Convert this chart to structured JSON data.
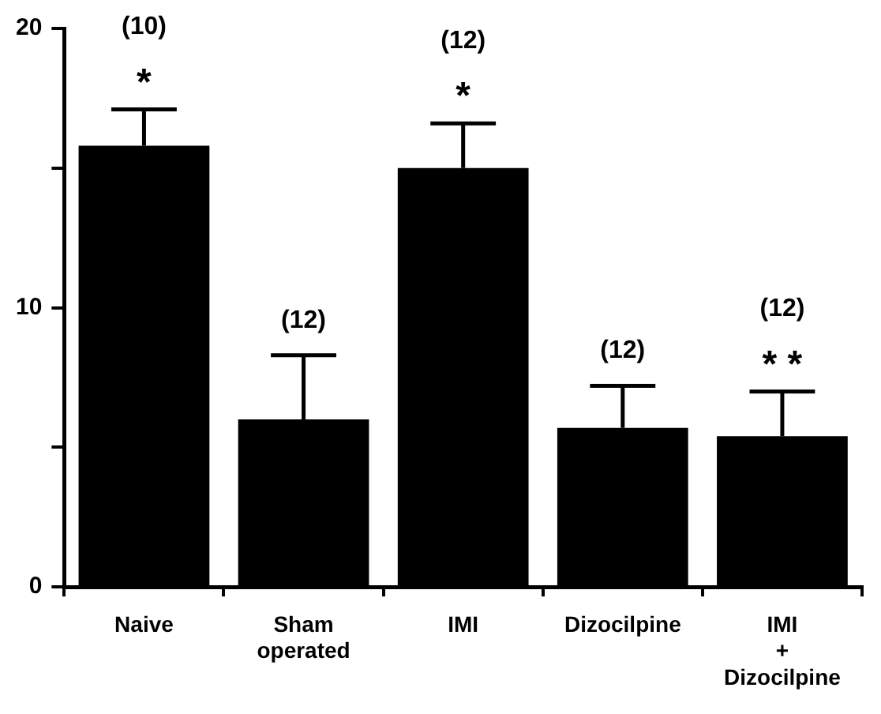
{
  "chart_data": {
    "type": "bar",
    "categories": [
      "Naive",
      "Sham\noperated",
      "IMI",
      "Dizocilpine",
      "IMI\n+\nDizocilpine"
    ],
    "values": [
      15.8,
      6.0,
      15.0,
      5.7,
      5.4
    ],
    "errors": [
      1.3,
      2.3,
      1.6,
      1.5,
      1.6
    ],
    "color": "#000000",
    "ylim": [
      0,
      20
    ],
    "yticks": [
      0,
      {
        "value": 5,
        "label": null
      },
      10,
      {
        "value": 15,
        "label": null
      },
      20
    ],
    "grid": false,
    "legend": false,
    "annotations": [
      "(10)",
      "*",
      "(12)",
      "(12)",
      "*",
      "(12)",
      "(12)",
      "* *"
    ]
  }
}
